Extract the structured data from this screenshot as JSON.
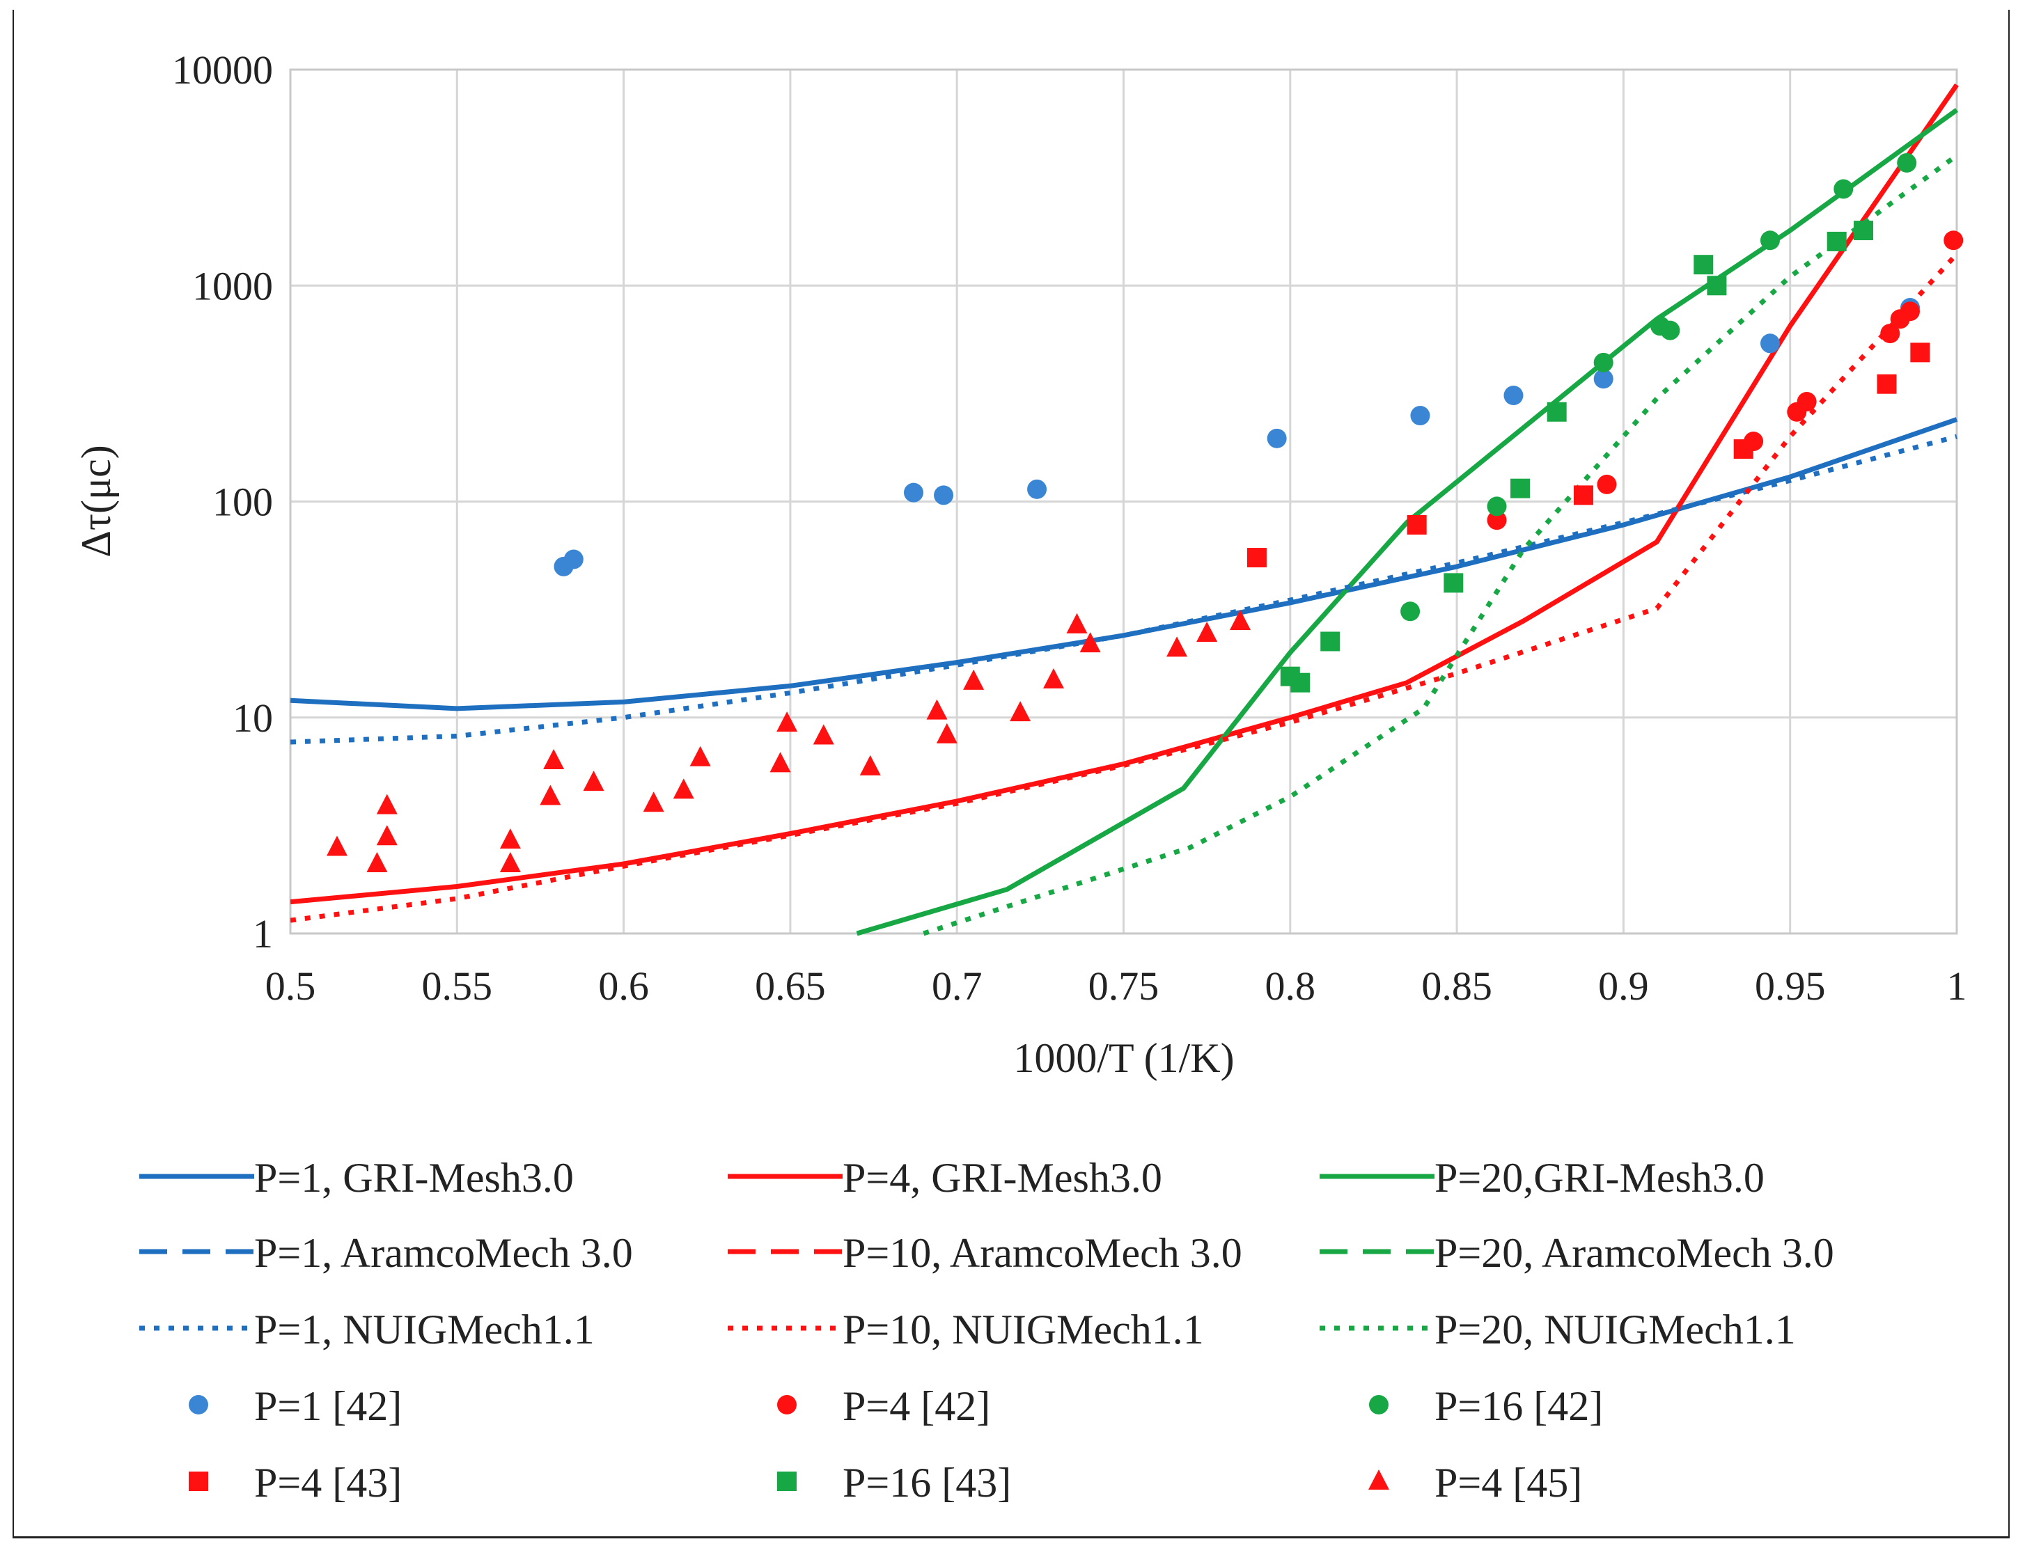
{
  "chart_data": {
    "type": "scatter",
    "xlabel": "1000/T (1/K)",
    "ylabel": "Δτ(μc)",
    "xlim": [
      0.5,
      1.0
    ],
    "ylim": [
      1,
      10000
    ],
    "yscale": "log",
    "grid": true,
    "x_ticks": [
      "0.5",
      "0.55",
      "0.6",
      "0.65",
      "0.7",
      "0.75",
      "0.8",
      "0.85",
      "0.9",
      "0.95",
      "1"
    ],
    "y_ticks": [
      "1",
      "10",
      "100",
      "1000",
      "10000"
    ],
    "legend_position": "bottom",
    "series": [
      {
        "name": "P=1, GRI-Mesh3.0",
        "style": "solid",
        "color": "#1f6fc0",
        "x": [
          0.5,
          0.55,
          0.6,
          0.65,
          0.7,
          0.75,
          0.8,
          0.85,
          0.9,
          0.95,
          1.0
        ],
        "y": [
          12,
          11,
          11.8,
          14,
          18,
          24,
          34,
          50,
          78,
          130,
          240
        ]
      },
      {
        "name": "P=4, GRI-Mesh3.0",
        "style": "solid",
        "color": "#ff1111",
        "x": [
          0.5,
          0.55,
          0.6,
          0.65,
          0.7,
          0.75,
          0.8,
          0.835,
          0.87,
          0.91,
          0.95,
          1.0
        ],
        "y": [
          1.4,
          1.65,
          2.1,
          2.9,
          4.1,
          6.1,
          10,
          14.5,
          28,
          65,
          650,
          8500
        ]
      },
      {
        "name": "P=20,GRI-Mesh3.0",
        "style": "solid",
        "color": "#17a845",
        "x": [
          0.67,
          0.715,
          0.768,
          0.8,
          0.835,
          0.87,
          0.91,
          0.95,
          1.0
        ],
        "y": [
          1,
          1.6,
          4.7,
          20,
          80,
          220,
          700,
          1800,
          6500
        ]
      },
      {
        "name": "P=1, AramcoMech 3.0",
        "style": "dashed",
        "color": "#1f6fc0",
        "x": [],
        "y": []
      },
      {
        "name": "P=10, AramcoMech 3.0",
        "style": "dashed",
        "color": "#ff1111",
        "x": [],
        "y": []
      },
      {
        "name": "P=20, AramcoMech 3.0",
        "style": "dashed",
        "color": "#17a845",
        "x": [],
        "y": []
      },
      {
        "name": "P=1, NUIGMech1.1",
        "style": "dotted",
        "color": "#1f6fc0",
        "x": [
          0.5,
          0.55,
          0.6,
          0.65,
          0.7,
          0.75,
          0.8,
          0.85,
          0.9,
          0.95,
          1.0
        ],
        "y": [
          7.7,
          8.2,
          10,
          13,
          17.5,
          24,
          35,
          52,
          80,
          125,
          200
        ]
      },
      {
        "name": "P=10, NUIGMech1.1",
        "style": "dotted",
        "color": "#ff1111",
        "x": [
          0.5,
          0.55,
          0.6,
          0.65,
          0.7,
          0.75,
          0.8,
          0.85,
          0.91,
          0.95,
          1.0
        ],
        "y": [
          1.15,
          1.45,
          2.05,
          2.85,
          4.0,
          6.0,
          9.5,
          16,
          32,
          200,
          1400
        ]
      },
      {
        "name": "P=20, NUIGMech1.1",
        "style": "dotted",
        "color": "#17a845",
        "x": [
          0.69,
          0.77,
          0.8,
          0.84,
          0.87,
          0.91,
          0.95,
          1.0
        ],
        "y": [
          1,
          2.5,
          4.3,
          11,
          60,
          300,
          1100,
          4000
        ]
      },
      {
        "name": "P=1 [42]",
        "marker": "circle",
        "color": "#3a86d4",
        "x": [
          0.582,
          0.585,
          0.687,
          0.696,
          0.724,
          0.796,
          0.839,
          0.867,
          0.894,
          0.944,
          0.986
        ],
        "y": [
          50,
          54,
          110,
          107,
          114,
          196,
          250,
          310,
          370,
          540,
          790
        ]
      },
      {
        "name": "P=4 [42]",
        "marker": "circle",
        "color": "#ff1111",
        "x": [
          0.862,
          0.895,
          0.939,
          0.952,
          0.955,
          0.98,
          0.983,
          0.986,
          0.999
        ],
        "y": [
          82,
          120,
          190,
          260,
          290,
          600,
          700,
          760,
          1620
        ]
      },
      {
        "name": "P=16 [42]",
        "marker": "circle",
        "color": "#17a845",
        "x": [
          0.836,
          0.862,
          0.894,
          0.911,
          0.914,
          0.944,
          0.966,
          0.985
        ],
        "y": [
          31,
          95,
          440,
          650,
          620,
          1620,
          2800,
          3700
        ]
      },
      {
        "name": "P=4 [43]",
        "marker": "square",
        "color": "#ff1111",
        "x": [
          0.79,
          0.838,
          0.888,
          0.936,
          0.979,
          0.989
        ],
        "y": [
          55,
          78,
          107,
          175,
          350,
          490
        ]
      },
      {
        "name": "P=16 [43]",
        "marker": "square",
        "color": "#17a845",
        "x": [
          0.8,
          0.803,
          0.812,
          0.849,
          0.869,
          0.88,
          0.924,
          0.928,
          0.964,
          0.972
        ],
        "y": [
          15.5,
          14.5,
          22.5,
          42,
          115,
          260,
          1250,
          1000,
          1600,
          1800
        ]
      },
      {
        "name": "P=4 [45]",
        "marker": "triangle",
        "color": "#ff1111",
        "x": [
          0.514,
          0.526,
          0.529,
          0.529,
          0.566,
          0.566,
          0.578,
          0.579,
          0.591,
          0.609,
          0.618,
          0.623,
          0.647,
          0.649,
          0.66,
          0.674,
          0.694,
          0.697,
          0.705,
          0.719,
          0.729,
          0.736,
          0.74,
          0.766,
          0.775,
          0.785
        ],
        "y": [
          2.5,
          2.1,
          2.8,
          3.9,
          2.1,
          2.7,
          4.3,
          6.3,
          5.0,
          4.0,
          4.6,
          6.5,
          6.1,
          9.4,
          8.2,
          5.9,
          10.7,
          8.3,
          14.7,
          10.5,
          14.9,
          26.8,
          21.9,
          20.9,
          24.5,
          27.8
        ]
      }
    ]
  }
}
